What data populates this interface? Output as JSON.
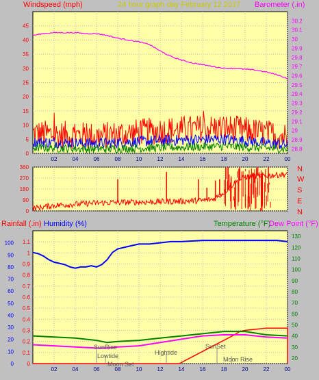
{
  "header": {
    "left_label": "Windspeed (mph)",
    "center_label": "24 hour graph day   February 12 2017",
    "right_label": "Barometer (.in)"
  },
  "bottom_header": {
    "rainfall_label": "Rainfall (.in)",
    "humidity_label": "Humidity (%)",
    "temperature_label": "Temperature (°F)",
    "dewpoint_label": "Dew Point (°F)"
  },
  "events": [
    "SunRise",
    "Lowtide",
    "Moon Set",
    "Hightide",
    "SunSet",
    "Moon Rise"
  ],
  "colors": {
    "plot_bg": "#ffffa8",
    "wind_gust": "#ff0000",
    "wind_avg": "#0000ff",
    "wind_low": "#008000",
    "barometer": "#ff00ff",
    "direction": "#ff0000",
    "humidity": "#0000ff",
    "rainfall": "#ff0000",
    "temperature": "#008000",
    "dewpoint": "#ff00ff",
    "axis_text_left": "#ff0000",
    "axis_text_right": "#ff00ff"
  },
  "chart_data": [
    {
      "type": "line",
      "title": "24 hour graph day   February 12 2017",
      "x_ticks": [
        "02",
        "04",
        "06",
        "08",
        "10",
        "12",
        "14",
        "16",
        "18",
        "20",
        "22",
        "00"
      ],
      "y_left": {
        "label": "Windspeed (mph)",
        "ticks": [
          0,
          5,
          10,
          15,
          20,
          25,
          30,
          35,
          40,
          45
        ],
        "range": [
          0,
          50
        ]
      },
      "y_right": {
        "label": "Barometer (.in)",
        "ticks": [
          "28.8",
          "28.9",
          "29",
          "29.1",
          "29.2",
          "29.3",
          "29.4",
          "29.5",
          "29.6",
          "29.7",
          "29.8",
          "29.9",
          "30",
          "30.1",
          "30.2"
        ],
        "range": [
          28.75,
          30.3
        ]
      },
      "series": [
        {
          "name": "Windspeed",
          "axis": "left",
          "style": "noise",
          "base": [
            [
              0,
              7
            ],
            [
              6,
              6
            ],
            [
              12,
              8
            ],
            [
              18,
              9
            ],
            [
              24,
              6
            ]
          ],
          "amp": 5
        },
        {
          "name": "Windspeed avg",
          "axis": "left",
          "style": "noise",
          "base": [
            [
              0,
              4
            ],
            [
              6,
              3.5
            ],
            [
              12,
              4.5
            ],
            [
              18,
              5
            ],
            [
              24,
              3
            ]
          ],
          "amp": 2
        },
        {
          "name": "Windspeed low",
          "axis": "left",
          "style": "noise",
          "base": [
            [
              0,
              2
            ],
            [
              6,
              1.5
            ],
            [
              12,
              2
            ],
            [
              18,
              2.5
            ],
            [
              24,
              1.5
            ]
          ],
          "amp": 1.5
        },
        {
          "name": "Barometer",
          "axis": "right",
          "x": [
            0,
            1,
            2,
            3,
            4,
            5,
            6,
            7,
            8,
            9,
            10,
            11,
            12,
            13,
            14,
            15,
            16,
            17,
            18,
            19,
            20,
            21,
            22,
            23,
            24
          ],
          "y": [
            30.04,
            30.06,
            30.07,
            30.07,
            30.07,
            30.06,
            30.06,
            30.04,
            30.01,
            29.99,
            29.97,
            29.94,
            29.87,
            29.81,
            29.77,
            29.74,
            29.72,
            29.7,
            29.68,
            29.68,
            29.67,
            29.66,
            29.64,
            29.61,
            29.57
          ]
        }
      ]
    },
    {
      "type": "scatter",
      "y_ticks": [
        0,
        90,
        180,
        270,
        360
      ],
      "y_range": [
        0,
        360
      ],
      "compass": [
        "N",
        "W",
        "S",
        "E",
        "N"
      ],
      "x_ticks": [
        "02",
        "04",
        "06",
        "08",
        "10",
        "12",
        "14",
        "16",
        "18",
        "20",
        "22",
        "00"
      ],
      "series": [
        {
          "name": "Wind direction",
          "base": [
            [
              0,
              20
            ],
            [
              2,
              45
            ],
            [
              4,
              55
            ],
            [
              6,
              65
            ],
            [
              8,
              70
            ],
            [
              10,
              72
            ],
            [
              12,
              75
            ],
            [
              14,
              80
            ],
            [
              16,
              85
            ],
            [
              17,
              95
            ],
            [
              18,
              150
            ],
            [
              19,
              230
            ],
            [
              20,
              280
            ],
            [
              22,
              290
            ],
            [
              24,
              300
            ]
          ],
          "amp": 25,
          "spikes": [
            [
              8,
              260
            ],
            [
              12.6,
              320
            ],
            [
              15.6,
              260
            ],
            [
              16.4,
              190
            ],
            [
              17.2,
              250
            ],
            [
              17.6,
              260
            ],
            [
              18.4,
              360
            ],
            [
              19.1,
              10
            ],
            [
              19.5,
              360
            ],
            [
              20.3,
              20
            ],
            [
              21.2,
              360
            ],
            [
              21.6,
              30
            ],
            [
              22.2,
              360
            ]
          ]
        }
      ]
    },
    {
      "type": "line",
      "x_ticks": [
        "02",
        "04",
        "06",
        "08",
        "10",
        "12",
        "14",
        "16",
        "18",
        "20",
        "22",
        "00"
      ],
      "y_left": {
        "label": "Rainfall (.in)",
        "ticks": [
          "0",
          "0.1",
          "0.2",
          "0.3",
          "0.4",
          "0.5",
          "0.6",
          "0.7",
          "0.8",
          "0.9",
          "1",
          "1.1"
        ],
        "range": [
          0,
          1.2
        ]
      },
      "y_left_inner": {
        "label": "Humidity (%)",
        "ticks": [
          0,
          10,
          20,
          30,
          40,
          50,
          60,
          70,
          80,
          90,
          100
        ],
        "range": [
          0,
          110
        ]
      },
      "y_right": {
        "label": "Temperature (°F) / Dew Point (°F)",
        "ticks": [
          20,
          30,
          40,
          50,
          60,
          70,
          80,
          90,
          100,
          110,
          120,
          130
        ],
        "range": [
          15,
          135
        ]
      },
      "series": [
        {
          "name": "Humidity",
          "axis": "inner",
          "x": [
            0,
            0.5,
            1,
            1.5,
            2,
            2.5,
            3,
            3.5,
            4,
            4.5,
            5,
            5.5,
            6,
            6.5,
            7,
            7.5,
            8,
            9,
            10,
            11,
            12,
            13,
            14,
            16,
            18,
            20,
            22,
            23,
            24
          ],
          "y": [
            92,
            91,
            89,
            86,
            84,
            83,
            82,
            80,
            79,
            80,
            80,
            81,
            80,
            82,
            86,
            92,
            95,
            97,
            99,
            99,
            100,
            101,
            101,
            102,
            102,
            102,
            102,
            102,
            101
          ]
        },
        {
          "name": "Rainfall",
          "axis": "left",
          "x": [
            0,
            13.8,
            14,
            15,
            16,
            17,
            18,
            19,
            19.5,
            20,
            21,
            22,
            23,
            24,
            24.01
          ],
          "y": [
            0,
            0,
            0.01,
            0.06,
            0.11,
            0.16,
            0.21,
            0.26,
            0.29,
            0.3,
            0.31,
            0.32,
            0.32,
            0.32,
            0
          ]
        },
        {
          "name": "Temperature",
          "axis": "right",
          "x": [
            0,
            2,
            4,
            6,
            7,
            8,
            10,
            12,
            14,
            16,
            18,
            20,
            22,
            24
          ],
          "y": [
            40,
            39,
            38,
            36,
            34,
            35,
            36,
            38,
            40,
            42,
            44,
            44,
            41,
            40
          ]
        },
        {
          "name": "Dew Point",
          "axis": "right",
          "x": [
            0,
            2,
            4,
            6,
            7,
            8,
            10,
            12,
            14,
            16,
            18,
            20,
            22,
            24
          ],
          "y": [
            32,
            31,
            30,
            29,
            29,
            30,
            31,
            34,
            37,
            40,
            41,
            41,
            39,
            38
          ]
        }
      ]
    }
  ]
}
